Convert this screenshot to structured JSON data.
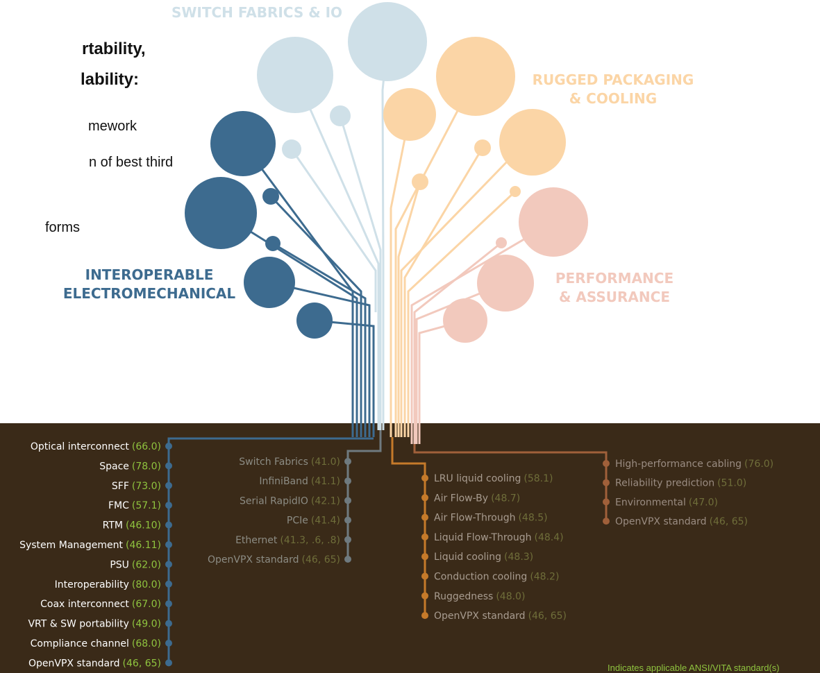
{
  "intro": {
    "heading": [
      "rtability,",
      "lability:"
    ],
    "bullets": [
      "mework",
      "n of best third",
      "forms"
    ]
  },
  "branches": [
    {
      "label": [
        "SWITCH FABRICS & IO"
      ]
    },
    {
      "label": [
        "RUGGED PACKAGING",
        "& COOLING"
      ]
    },
    {
      "label": [
        "PERFORMANCE",
        "& ASSURANCE"
      ]
    },
    {
      "label": [
        "INTEROPERABLE",
        "ELECTROMECHANICAL"
      ]
    }
  ],
  "lists": [
    {
      "items": [
        {
          "name": "Optical interconnect",
          "std": "(66.0)"
        },
        {
          "name": "Space",
          "std": "(78.0)"
        },
        {
          "name": "SFF",
          "std": "(73.0)"
        },
        {
          "name": "FMC",
          "std": "(57.1)"
        },
        {
          "name": "RTM",
          "std": "(46.10)"
        },
        {
          "name": "System Management",
          "std": "(46.11)"
        },
        {
          "name": "PSU",
          "std": "(62.0)"
        },
        {
          "name": "Interoperability",
          "std": "(80.0)"
        },
        {
          "name": "Coax interconnect",
          "std": "(67.0)"
        },
        {
          "name": "VRT & SW portability",
          "std": "(49.0)"
        },
        {
          "name": "Compliance channel",
          "std": "(68.0)"
        },
        {
          "name": "OpenVPX standard",
          "std": "(46, 65)"
        }
      ]
    },
    {
      "items": [
        {
          "name": "Switch Fabrics",
          "std": "(41.0)"
        },
        {
          "name": "InfiniBand",
          "std": "(41.1)"
        },
        {
          "name": "Serial RapidIO",
          "std": "(42.1)"
        },
        {
          "name": "PCIe",
          "std": "(41.4)"
        },
        {
          "name": "Ethernet",
          "std": "(41.3, .6, .8)"
        },
        {
          "name": "OpenVPX standard",
          "std": "(46, 65)"
        }
      ]
    },
    {
      "items": [
        {
          "name": "LRU liquid cooling",
          "std": "(58.1)"
        },
        {
          "name": "Air Flow-By",
          "std": "(48.7)"
        },
        {
          "name": "Air Flow-Through",
          "std": "(48.5)"
        },
        {
          "name": "Liquid Flow-Through",
          "std": "(48.4)"
        },
        {
          "name": "Liquid cooling",
          "std": "(48.3)"
        },
        {
          "name": "Conduction cooling",
          "std": "(48.2)"
        },
        {
          "name": "Ruggedness",
          "std": "(48.0)"
        },
        {
          "name": "OpenVPX standard",
          "std": "(46, 65)"
        }
      ]
    },
    {
      "items": [
        {
          "name": "High-performance cabling",
          "std": "(76.0)"
        },
        {
          "name": "Reliability prediction",
          "std": "(51.0)"
        },
        {
          "name": "Environmental",
          "std": "(47.0)"
        },
        {
          "name": "OpenVPX standard",
          "std": "(46, 65)"
        }
      ]
    }
  ],
  "legend": "Indicates applicable ANSI/VITA standard(s)"
}
